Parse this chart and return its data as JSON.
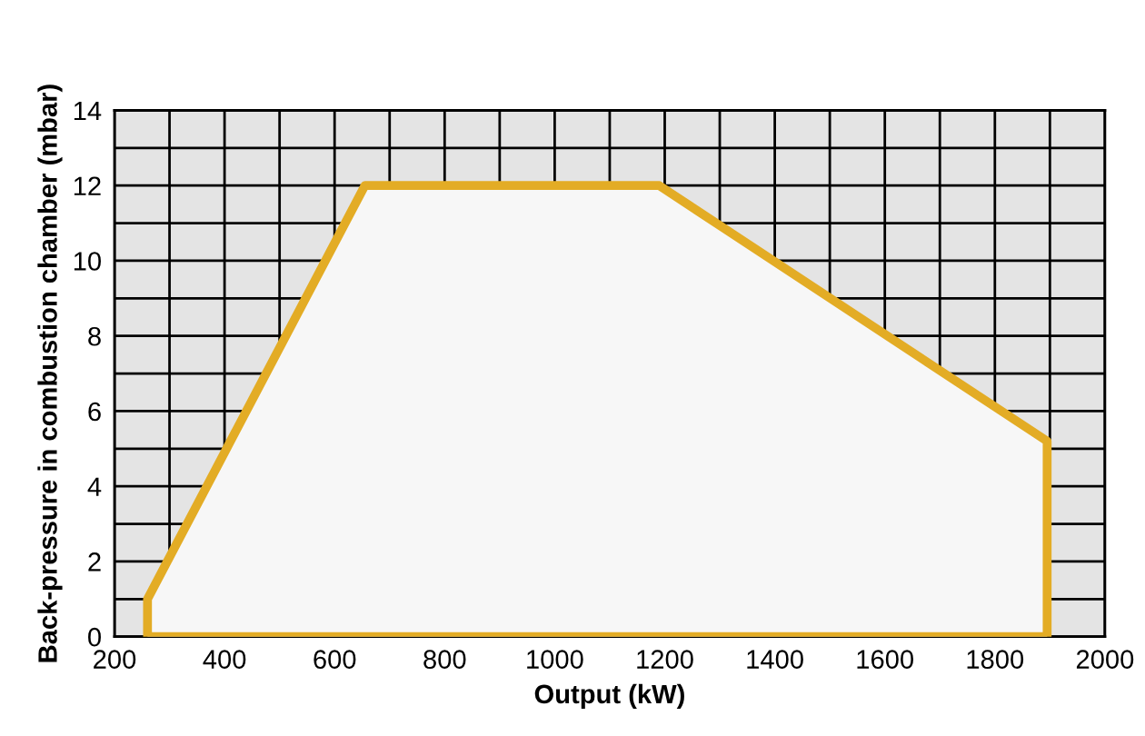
{
  "chart_data": {
    "type": "area",
    "xlabel": "Output (kW)",
    "ylabel": "Back-pressure in combustion chamber (mbar)",
    "series": [
      {
        "color": "#e3ac25",
        "x": [
          260,
          260,
          655,
          1190,
          1895,
          1895,
          260
        ],
        "values": [
          0,
          1,
          12,
          12,
          5.2,
          0,
          0
        ]
      }
    ],
    "xlim": [
      200,
      2000
    ],
    "ylim": [
      0,
      14
    ],
    "xticks": [
      200,
      {
        "value": 300,
        "label": null
      },
      400,
      {
        "value": 500,
        "label": null
      },
      600,
      {
        "value": 700,
        "label": null
      },
      800,
      {
        "value": 900,
        "label": null
      },
      1000,
      {
        "value": 1100,
        "label": null
      },
      1200,
      {
        "value": 1300,
        "label": null
      },
      1400,
      {
        "value": 1500,
        "label": null
      },
      1600,
      {
        "value": 1700,
        "label": null
      },
      1800,
      {
        "value": 1900,
        "label": null
      },
      2000
    ],
    "yticks": [
      0,
      {
        "value": 1,
        "label": null
      },
      2,
      {
        "value": 3,
        "label": null
      },
      4,
      {
        "value": 5,
        "label": null
      },
      6,
      {
        "value": 7,
        "label": null
      },
      8,
      {
        "value": 9,
        "label": null
      },
      10,
      {
        "value": 11,
        "label": null
      },
      12,
      {
        "value": 13,
        "label": null
      },
      14
    ],
    "grid": true,
    "legend": false
  }
}
